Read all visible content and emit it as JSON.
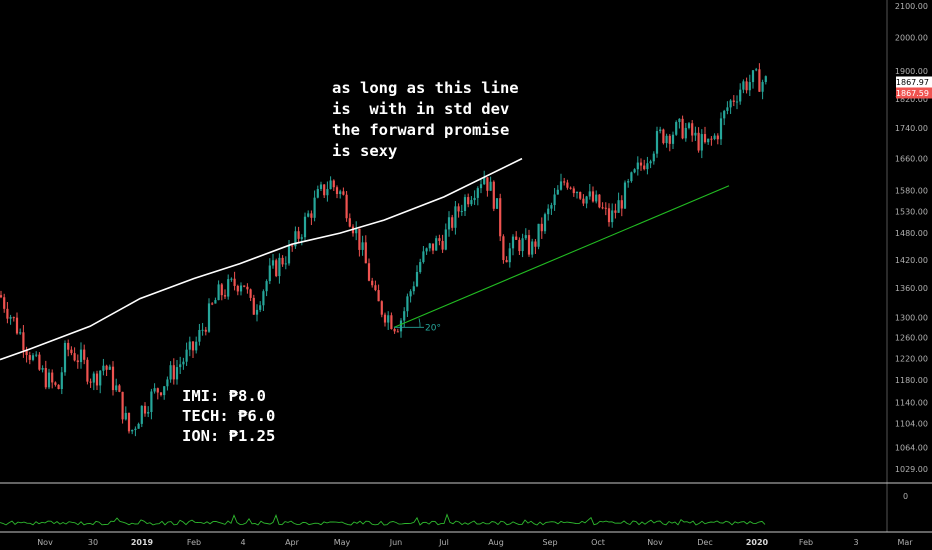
{
  "annotations": {
    "main_lines": [
      "as long as this line",
      "is  with in std dev",
      "the forward promise",
      "is sexy"
    ],
    "price_lines": [
      "IMI: ₱8.0",
      "TECH: ₱6.0",
      "ION: ₱1.25"
    ],
    "angle_label": "20°"
  },
  "colors": {
    "up": "#26a69a",
    "down": "#ef5350",
    "moving_average": "#ffffff",
    "trendline": "#22bb22",
    "volume_indicator": "#2eb82e",
    "last_price_tag": "#ffffff",
    "close_price_tag": "#ef5350",
    "axis_text": "#b0b0b0",
    "divider": "#c8c8c8"
  },
  "chart_data": {
    "type": "candlestick",
    "price_axis": {
      "tick_labels": [
        "2100.00",
        "2000.00",
        "1900.00",
        "1820.00",
        "1740.00",
        "1660.00",
        "1580.00",
        "1530.00",
        "1480.00",
        "1420.00",
        "1360.00",
        "1300.00",
        "1260.00",
        "1220.00",
        "1180.00",
        "1140.00",
        "1104.00",
        "1064.00",
        "1029.00"
      ],
      "range": [
        1010,
        2140
      ],
      "scale": "log"
    },
    "time_axis": {
      "tick_labels": [
        "Nov",
        "30",
        "2019",
        "Feb",
        "4",
        "Apr",
        "May",
        "Jun",
        "Jul",
        "Aug",
        "Sep",
        "Oct",
        "Nov",
        "Dec",
        "2020",
        "Feb",
        "3",
        "Mar"
      ],
      "bold_labels": [
        "2019",
        "2020"
      ]
    },
    "price_tags": [
      {
        "label": "1867.97",
        "kind": "last"
      },
      {
        "label": "1867.59",
        "kind": "close"
      }
    ],
    "indicator_axis": {
      "tick_labels": [
        "0"
      ]
    },
    "price_path": [
      [
        "Nov 2018",
        1345
      ],
      [
        "mid Nov",
        1230
      ],
      [
        "late Nov",
        1200
      ],
      [
        "early Dec",
        1160
      ],
      [
        "mid Dec",
        1240
      ],
      [
        "late Dec",
        1220
      ],
      [
        "30",
        1180
      ],
      [
        "early Jan",
        1210
      ],
      [
        "mid Jan",
        1165
      ],
      [
        "late Jan",
        1085
      ],
      [
        "2019",
        1130
      ],
      [
        "Feb",
        1240
      ],
      [
        "late Feb",
        1345
      ],
      [
        "4",
        1380
      ],
      [
        "mid Mar",
        1310
      ],
      [
        "late Mar",
        1390
      ],
      [
        "Apr",
        1445
      ],
      [
        "mid Apr",
        1565
      ],
      [
        "late Apr",
        1600
      ],
      [
        "May",
        1570
      ],
      [
        "mid May",
        1470
      ],
      [
        "late May",
        1330
      ],
      [
        "Jun",
        1285
      ],
      [
        "early Jun",
        1300
      ],
      [
        "mid Jun",
        1415
      ],
      [
        "late Jun",
        1450
      ],
      [
        "Jul",
        1470
      ],
      [
        "mid Jul",
        1550
      ],
      [
        "late Jul",
        1620
      ],
      [
        "Aug",
        1550
      ],
      [
        "early Aug",
        1430
      ],
      [
        "mid Aug",
        1460
      ],
      [
        "late Aug",
        1445
      ],
      [
        "early Sep",
        1545
      ],
      [
        "Sep",
        1610
      ],
      [
        "mid Sep",
        1570
      ],
      [
        "late Sep",
        1545
      ],
      [
        "Oct",
        1510
      ],
      [
        "early Oct",
        1560
      ],
      [
        "mid Oct",
        1640
      ],
      [
        "late Oct",
        1720
      ],
      [
        "Nov",
        1740
      ],
      [
        "mid Nov",
        1710
      ],
      [
        "late Nov",
        1690
      ],
      [
        "Dec",
        1720
      ],
      [
        "early Dec",
        1800
      ],
      [
        "mid Dec",
        1860
      ],
      [
        "late Dec",
        1875
      ],
      [
        "2020",
        1868
      ]
    ],
    "moving_average": [
      [
        "Nov 2018",
        1218
      ],
      [
        "late Nov",
        1238
      ],
      [
        "30",
        1282
      ],
      [
        "2019",
        1338
      ],
      [
        "Feb",
        1380
      ],
      [
        "4",
        1412
      ],
      [
        "Apr",
        1455
      ],
      [
        "May",
        1480
      ],
      [
        "Jun",
        1510
      ],
      [
        "Jul",
        1565
      ],
      [
        "Aug",
        1660
      ]
    ],
    "trendline": {
      "from": [
        "Jun",
        1280
      ],
      "to": [
        "Dec",
        1592
      ]
    }
  }
}
